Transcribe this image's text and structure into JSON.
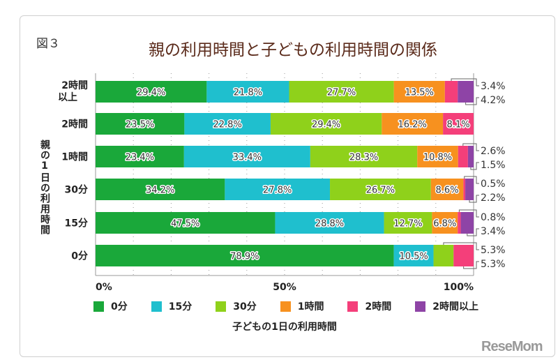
{
  "figure_label": "図３",
  "chart_data": {
    "type": "bar",
    "orientation": "horizontal-stacked-100",
    "title": "親の利用時間と子どもの利用時間の関係",
    "ylabel": "親の1日の利用時間",
    "xlabel": "子どもの1日の利用時間",
    "xlim": [
      0,
      100
    ],
    "x_ticks": [
      "0%",
      "50%",
      "100%"
    ],
    "grid": "vertical dotted every 10%",
    "legend_position": "bottom",
    "categories": [
      "2時間以上",
      "2時間",
      "1時間",
      "30分",
      "15分",
      "0分"
    ],
    "series": [
      {
        "name": "0分",
        "color": "#1aa83a",
        "values": [
          29.4,
          23.5,
          23.4,
          34.2,
          47.5,
          78.9
        ]
      },
      {
        "name": "15分",
        "color": "#1fbfce",
        "values": [
          21.8,
          22.8,
          33.4,
          27.8,
          28.8,
          10.5
        ]
      },
      {
        "name": "30分",
        "color": "#8fd11b",
        "values": [
          27.7,
          29.4,
          28.3,
          26.7,
          12.7,
          5.3
        ]
      },
      {
        "name": "1時間",
        "color": "#f7911f",
        "values": [
          13.5,
          16.2,
          10.8,
          8.6,
          6.8,
          0
        ]
      },
      {
        "name": "2時間",
        "color": "#f43f7a",
        "values": [
          3.4,
          8.1,
          2.6,
          0.5,
          0.8,
          5.3
        ]
      },
      {
        "name": "2時間以上",
        "color": "#8e44a6",
        "values": [
          4.2,
          0,
          1.5,
          2.2,
          3.4,
          0
        ]
      }
    ]
  },
  "watermark": "ReseMom"
}
